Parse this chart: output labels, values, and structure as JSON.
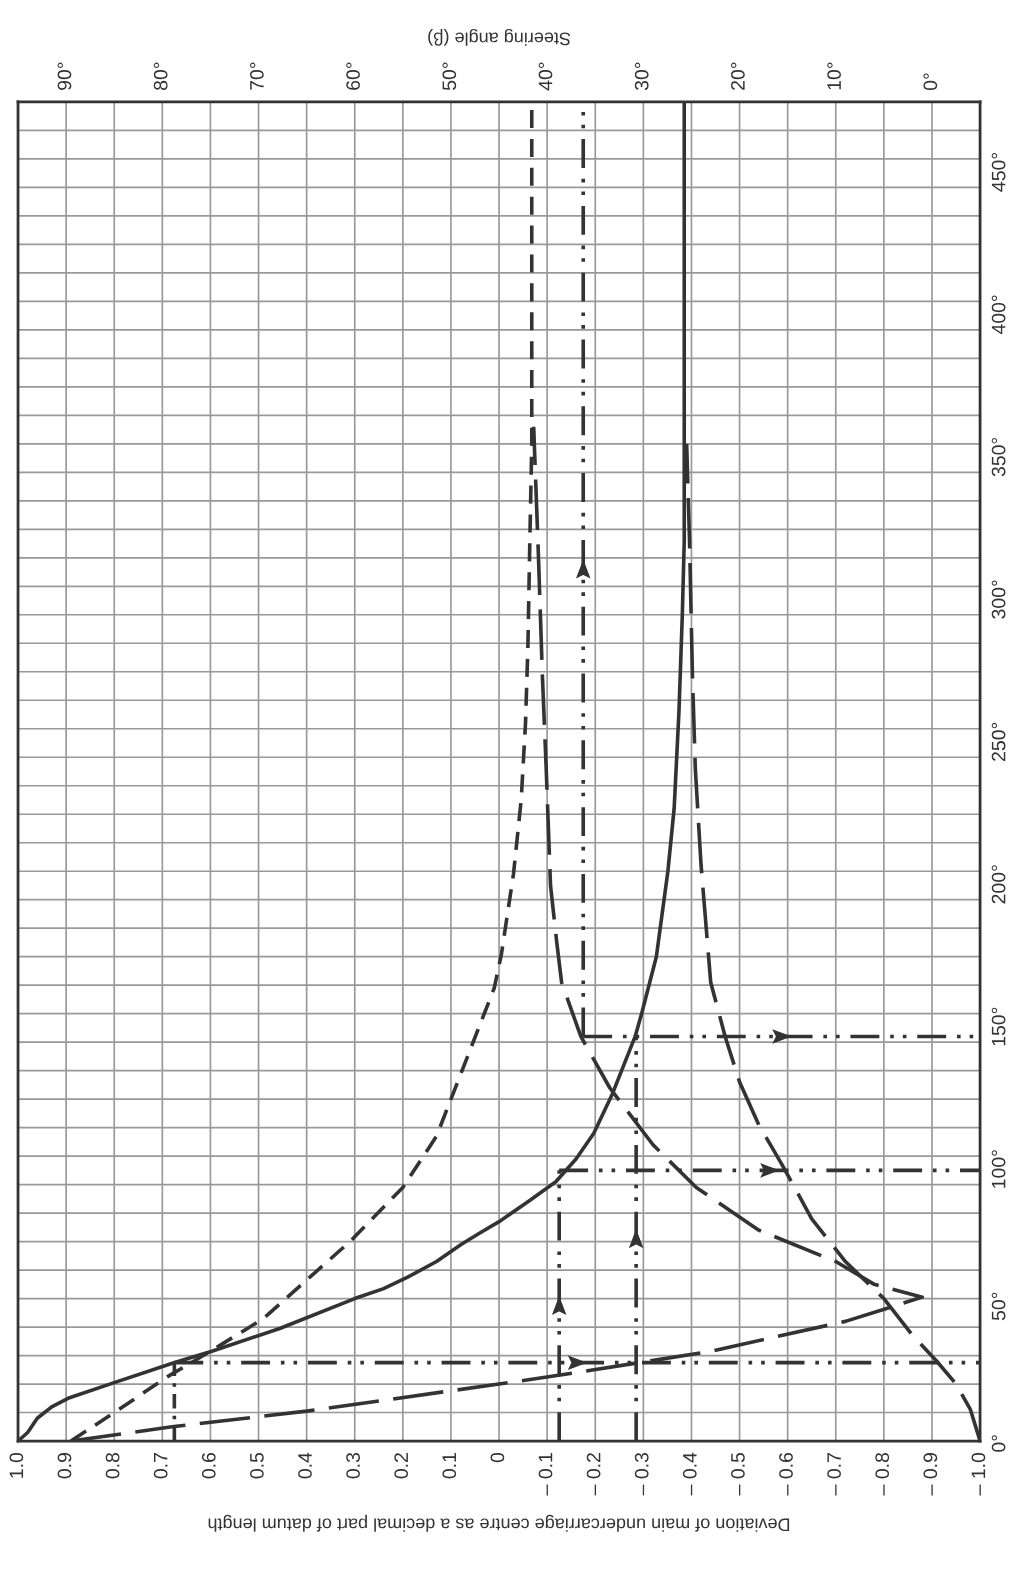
{
  "chart_data": {
    "type": "line",
    "xlabel": "Deviation of main undercarriage centre as a decimal part of datum length",
    "x2label": "Steering angle (β)",
    "xlim": [
      1.0,
      -1.0
    ],
    "xticks": [
      {
        "value": 1.0,
        "label": "1.0"
      },
      0.9,
      0.8,
      0.7,
      0.6,
      0.5,
      0.4,
      0.3,
      0.2,
      0.1,
      0,
      {
        "value": -0.1,
        "label": "– 0.1"
      },
      {
        "value": -0.2,
        "label": "– 0.2"
      },
      {
        "value": -0.3,
        "label": "– 0.3"
      },
      {
        "value": -0.4,
        "label": "– 0.4"
      },
      {
        "value": -0.5,
        "label": "– 0.5"
      },
      {
        "value": -0.6,
        "label": "– 0.6"
      },
      {
        "value": -0.7,
        "label": "– 0.7"
      },
      {
        "value": -0.8,
        "label": "– 0.8"
      },
      {
        "value": -0.9,
        "label": "– 0.9"
      },
      {
        "value": -1.0,
        "label": "– 1.0"
      }
    ],
    "x2lim": [
      95,
      -5
    ],
    "x2ticks": [
      {
        "value": 90,
        "label": "90°"
      },
      {
        "value": 80,
        "label": "80°"
      },
      {
        "value": 70,
        "label": "70°"
      },
      {
        "value": 60,
        "label": "60°"
      },
      {
        "value": 50,
        "label": "50°"
      },
      {
        "value": 40,
        "label": "40°"
      },
      {
        "value": 30,
        "label": "30°"
      },
      {
        "value": 20,
        "label": "20°"
      },
      {
        "value": 10,
        "label": "10°"
      },
      {
        "value": 0,
        "label": "0°"
      }
    ],
    "ylim": [
      0,
      470
    ],
    "yticks": [
      {
        "value": 0,
        "label": "0°"
      },
      {
        "value": 10,
        "label": null
      },
      {
        "value": 20,
        "label": null
      },
      {
        "value": 30,
        "label": null
      },
      {
        "value": 40,
        "label": null
      },
      {
        "value": 50,
        "label": "50°"
      },
      {
        "value": 60,
        "label": null
      },
      {
        "value": 70,
        "label": null
      },
      {
        "value": 80,
        "label": null
      },
      {
        "value": 90,
        "label": null
      },
      {
        "value": 100,
        "label": "100°"
      },
      {
        "value": 110,
        "label": null
      },
      {
        "value": 120,
        "label": null
      },
      {
        "value": 130,
        "label": null
      },
      {
        "value": 140,
        "label": null
      },
      {
        "value": 150,
        "label": "150°"
      },
      {
        "value": 160,
        "label": null
      },
      {
        "value": 170,
        "label": null
      },
      {
        "value": 180,
        "label": null
      },
      {
        "value": 190,
        "label": null
      },
      {
        "value": 200,
        "label": "200°"
      },
      {
        "value": 210,
        "label": null
      },
      {
        "value": 220,
        "label": null
      },
      {
        "value": 230,
        "label": null
      },
      {
        "value": 240,
        "label": null
      },
      {
        "value": 250,
        "label": "250°"
      },
      {
        "value": 260,
        "label": null
      },
      {
        "value": 270,
        "label": null
      },
      {
        "value": 280,
        "label": null
      },
      {
        "value": 290,
        "label": null
      },
      {
        "value": 300,
        "label": "300°"
      },
      {
        "value": 310,
        "label": null
      },
      {
        "value": 320,
        "label": null
      },
      {
        "value": 330,
        "label": null
      },
      {
        "value": 340,
        "label": null
      },
      {
        "value": 350,
        "label": "350°"
      },
      {
        "value": 360,
        "label": null
      },
      {
        "value": 370,
        "label": null
      },
      {
        "value": 380,
        "label": null
      },
      {
        "value": 390,
        "label": null
      },
      {
        "value": 400,
        "label": "400°"
      },
      {
        "value": 410,
        "label": null
      },
      {
        "value": 420,
        "label": null
      },
      {
        "value": 430,
        "label": null
      },
      {
        "value": 440,
        "label": null
      },
      {
        "value": 450,
        "label": "450°"
      },
      {
        "value": 460,
        "label": null
      }
    ],
    "grid": true,
    "series": [
      {
        "color": "#333333",
        "line_style": "solid",
        "x": [
          1.0,
          0.98,
          0.96,
          0.93,
          0.896,
          0.8,
          0.676,
          0.597,
          0.456,
          0.3,
          0.24,
          0.19,
          0.13,
          0.079,
          0.04,
          0.0,
          -0.06,
          -0.118,
          -0.16,
          -0.197,
          -0.236,
          -0.283,
          -0.298,
          -0.327,
          -0.351,
          -0.364,
          -0.374,
          -0.381,
          -0.385,
          -0.385
        ],
        "values": [
          0,
          3,
          8,
          12,
          15,
          20.5,
          27.5,
          31.5,
          39.5,
          50,
          53.5,
          57.5,
          63,
          69,
          73,
          77,
          84,
          91,
          99,
          108,
          122,
          142,
          151,
          170,
          200,
          222,
          256,
          290,
          316,
          470
        ]
      },
      {
        "color": "#333333",
        "line_style": "dashed",
        "x": [
          0.89,
          0.8,
          0.69,
          0.6,
          0.49,
          0.31,
          0.2,
          0.13,
          0.07,
          0.01,
          -0.005,
          -0.03,
          -0.046,
          -0.055,
          -0.06,
          -0.064,
          -0.068,
          -0.068
        ],
        "values": [
          0,
          10,
          22.5,
          31.5,
          43,
          70,
          89,
          107,
          133,
          159,
          171,
          199,
          225,
          252,
          279,
          316,
          350,
          470
        ]
      },
      {
        "color": "#333333",
        "line_style": "longdash",
        "x": [
          0.89,
          0.68,
          0.4,
          0.0,
          -0.16,
          -0.44,
          -0.72,
          -0.88,
          -0.78,
          -0.7,
          -0.54,
          -0.41,
          -0.32,
          -0.23,
          -0.17,
          -0.13,
          -0.12,
          -0.107,
          -0.098,
          -0.09,
          -0.082,
          -0.072
        ],
        "values": [
          0,
          5,
          10.5,
          20,
          24,
          31.5,
          42,
          50.5,
          55,
          63,
          74,
          89,
          104,
          124,
          142,
          161,
          175,
          195,
          236,
          269,
          310,
          356
        ]
      },
      {
        "color": "#333333",
        "line_style": "longdash",
        "x": [
          -1.0,
          -0.98,
          -0.95,
          -0.91,
          -0.86,
          -0.8,
          -0.72,
          -0.65,
          -0.59,
          -0.54,
          -0.5,
          -0.47,
          -0.44,
          -0.42,
          -0.408,
          -0.402,
          -0.396,
          -0.39
        ],
        "values": [
          0,
          11,
          20,
          28,
          37,
          50,
          63,
          78,
          96.5,
          111,
          126,
          142,
          161,
          202,
          236,
          269,
          316,
          350
        ]
      },
      {
        "color": "#333333",
        "line_style": "dotted",
        "x": [
          0.675,
          0.675
        ],
        "values": [
          0,
          27.5
        ]
      },
      {
        "color": "#333333",
        "line_style": "dashdotdot",
        "x": [
          0.675,
          -1.0
        ],
        "values": [
          27.5,
          27.5
        ]
      },
      {
        "color": "#333333",
        "line_style": "dashdotdot",
        "x": [
          -0.125,
          -0.125
        ],
        "values": [
          0,
          95
        ]
      },
      {
        "color": "#333333",
        "line_style": "dashdotdot",
        "x": [
          -0.125,
          -1.0
        ],
        "values": [
          95,
          95
        ]
      },
      {
        "color": "#333333",
        "line_style": "dashdotdot",
        "x": [
          -0.285,
          -0.285
        ],
        "values": [
          0,
          142
        ]
      },
      {
        "color": "#333333",
        "line_style": "dashdotdot",
        "x": [
          -0.175,
          -1.0
        ],
        "values": [
          142,
          142
        ]
      },
      {
        "color": "#333333",
        "line_style": "dashdotdot",
        "x": [
          -0.175,
          -0.175
        ],
        "values": [
          142,
          470
        ]
      }
    ]
  }
}
